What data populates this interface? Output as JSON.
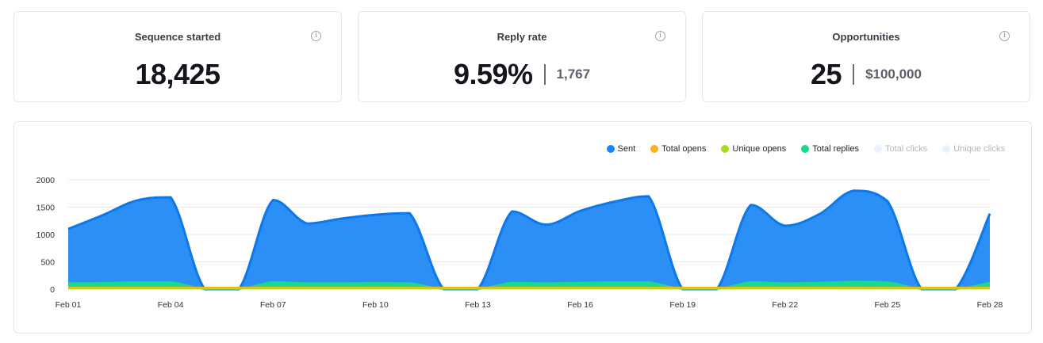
{
  "cards": [
    {
      "title": "Sequence started",
      "value": "18,425",
      "sub": ""
    },
    {
      "title": "Reply rate",
      "value": "9.59%",
      "sub": "1,767"
    },
    {
      "title": "Opportunities",
      "value": "25",
      "sub": "$100,000"
    }
  ],
  "info_icon_glyph": "i",
  "legend": [
    {
      "label": "Sent",
      "color": "#1a86f5",
      "faded": false
    },
    {
      "label": "Total opens",
      "color": "#f6b31a",
      "faded": false
    },
    {
      "label": "Unique opens",
      "color": "#a6e01c",
      "faded": false
    },
    {
      "label": "Total replies",
      "color": "#19d98a",
      "faded": false
    },
    {
      "label": "Total clicks",
      "color": "#eaf2fb",
      "faded": true
    },
    {
      "label": "Unique clicks",
      "color": "#eaf2fb",
      "faded": true
    }
  ],
  "chart_data": {
    "type": "area",
    "ylim": [
      0,
      2000
    ],
    "y_ticks": [
      0,
      500,
      1000,
      1500,
      2000
    ],
    "x_ticks": [
      "Feb 01",
      "Feb 04",
      "Feb 07",
      "Feb 10",
      "Feb 13",
      "Feb 16",
      "Feb 19",
      "Feb 22",
      "Feb 25",
      "Feb 28"
    ],
    "x": [
      "Feb 01",
      "Feb 02",
      "Feb 03",
      "Feb 04",
      "Feb 05",
      "Feb 06",
      "Feb 07",
      "Feb 08",
      "Feb 09",
      "Feb 10",
      "Feb 11",
      "Feb 12",
      "Feb 13",
      "Feb 14",
      "Feb 15",
      "Feb 16",
      "Feb 17",
      "Feb 18",
      "Feb 19",
      "Feb 20",
      "Feb 21",
      "Feb 22",
      "Feb 23",
      "Feb 24",
      "Feb 25",
      "Feb 26",
      "Feb 27",
      "Feb 28"
    ],
    "series": [
      {
        "name": "Sent",
        "color": "#1a86f5",
        "values": [
          1100,
          1350,
          1620,
          1680,
          0,
          0,
          1630,
          1200,
          1290,
          1360,
          1390,
          0,
          0,
          1420,
          1180,
          1430,
          1600,
          1700,
          0,
          0,
          1540,
          1160,
          1370,
          1800,
          1610,
          0,
          0,
          1380
        ]
      },
      {
        "name": "Total replies",
        "color": "#19d98a",
        "values": [
          110,
          115,
          130,
          130,
          0,
          0,
          130,
          110,
          110,
          115,
          110,
          0,
          0,
          120,
          110,
          120,
          130,
          130,
          0,
          0,
          130,
          110,
          120,
          140,
          130,
          0,
          0,
          120
        ]
      },
      {
        "name": "Total opens",
        "color": "#f6b31a",
        "values": [
          30,
          30,
          30,
          30,
          30,
          30,
          30,
          30,
          30,
          30,
          30,
          30,
          30,
          30,
          30,
          30,
          30,
          30,
          30,
          30,
          30,
          30,
          30,
          30,
          30,
          30,
          30,
          30
        ]
      },
      {
        "name": "Unique opens",
        "color": "#a6e01c",
        "values": [
          10,
          10,
          10,
          10,
          10,
          10,
          10,
          10,
          10,
          10,
          10,
          10,
          10,
          10,
          10,
          10,
          10,
          10,
          10,
          10,
          10,
          10,
          10,
          10,
          10,
          10,
          10,
          10
        ]
      }
    ]
  }
}
